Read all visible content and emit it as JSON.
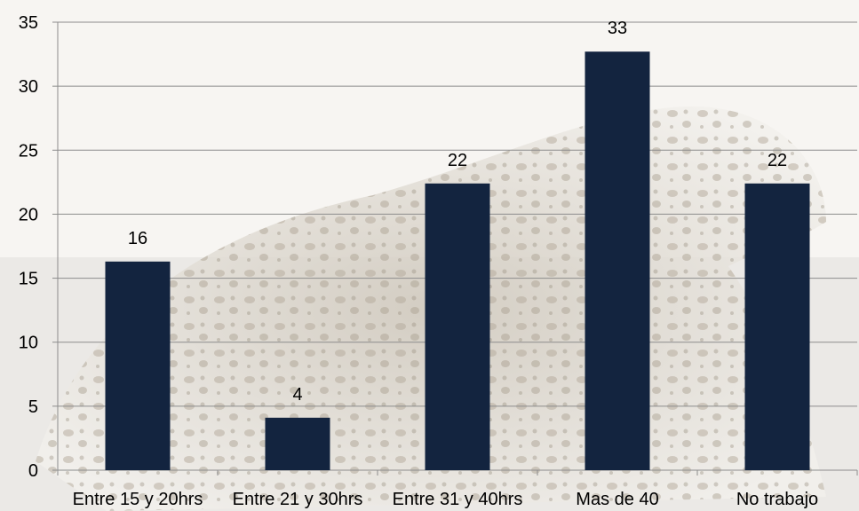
{
  "chart_data": {
    "type": "bar",
    "categories": [
      "Entre 15 y 20hrs",
      "Entre 21 y 30hrs",
      "Entre 31 y 40hrs",
      "Mas de 40",
      "No trabajo"
    ],
    "values": [
      16.3,
      4.1,
      22.4,
      32.7,
      22.4
    ],
    "data_labels": [
      "16",
      "4",
      "22",
      "33",
      "22"
    ],
    "ylim": [
      0,
      35
    ],
    "yticks": [
      0,
      5,
      10,
      15,
      20,
      25,
      30,
      35
    ],
    "grid": true,
    "legend": "none",
    "title": "",
    "xlabel": "",
    "ylabel": "",
    "colors": {
      "bar": "#13243f",
      "grid": "#8c8c8c",
      "axis": "#8c8c8c"
    }
  }
}
